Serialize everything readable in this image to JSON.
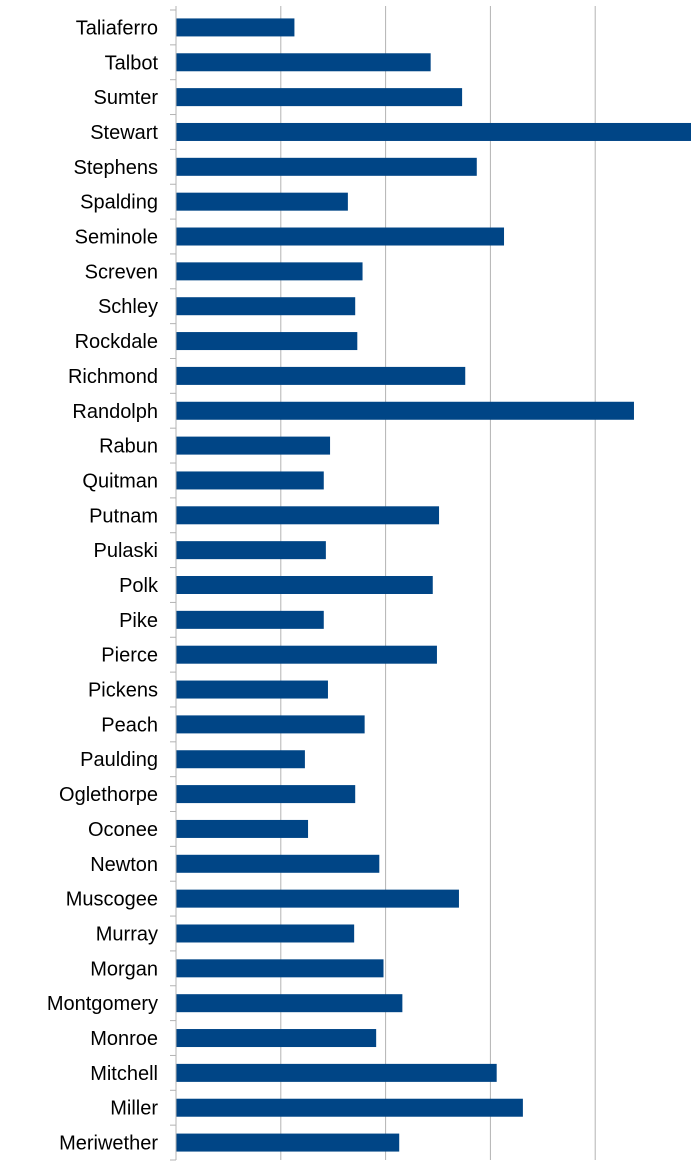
{
  "chart_data": {
    "type": "bar",
    "orientation": "horizontal",
    "categories": [
      "Taliaferro",
      "Talbot",
      "Sumter",
      "Stewart",
      "Stephens",
      "Spalding",
      "Seminole",
      "Screven",
      "Schley",
      "Rockdale",
      "Richmond",
      "Randolph",
      "Rabun",
      "Quitman",
      "Putnam",
      "Pulaski",
      "Polk",
      "Pike",
      "Pierce",
      "Pickens",
      "Peach",
      "Paulding",
      "Oglethorpe",
      "Oconee",
      "Newton",
      "Muscogee",
      "Murray",
      "Morgan",
      "Montgomery",
      "Monroe",
      "Mitchell",
      "Miller",
      "Meriwether"
    ],
    "values": [
      11.3,
      24.3,
      27.3,
      49.2,
      28.7,
      16.4,
      31.3,
      17.8,
      17.1,
      17.3,
      27.6,
      43.7,
      14.7,
      14.1,
      25.1,
      14.3,
      24.5,
      14.1,
      24.9,
      14.5,
      18.0,
      12.3,
      17.1,
      12.6,
      19.4,
      27.0,
      17.0,
      19.8,
      21.6,
      19.1,
      30.6,
      33.1,
      21.3
    ],
    "title": "",
    "xlabel": "",
    "ylabel": "",
    "xlim": [
      0,
      50
    ],
    "gridlines": "vertical",
    "tick_labels_shown": false,
    "legend": "none",
    "bar_color": "#004586"
  }
}
